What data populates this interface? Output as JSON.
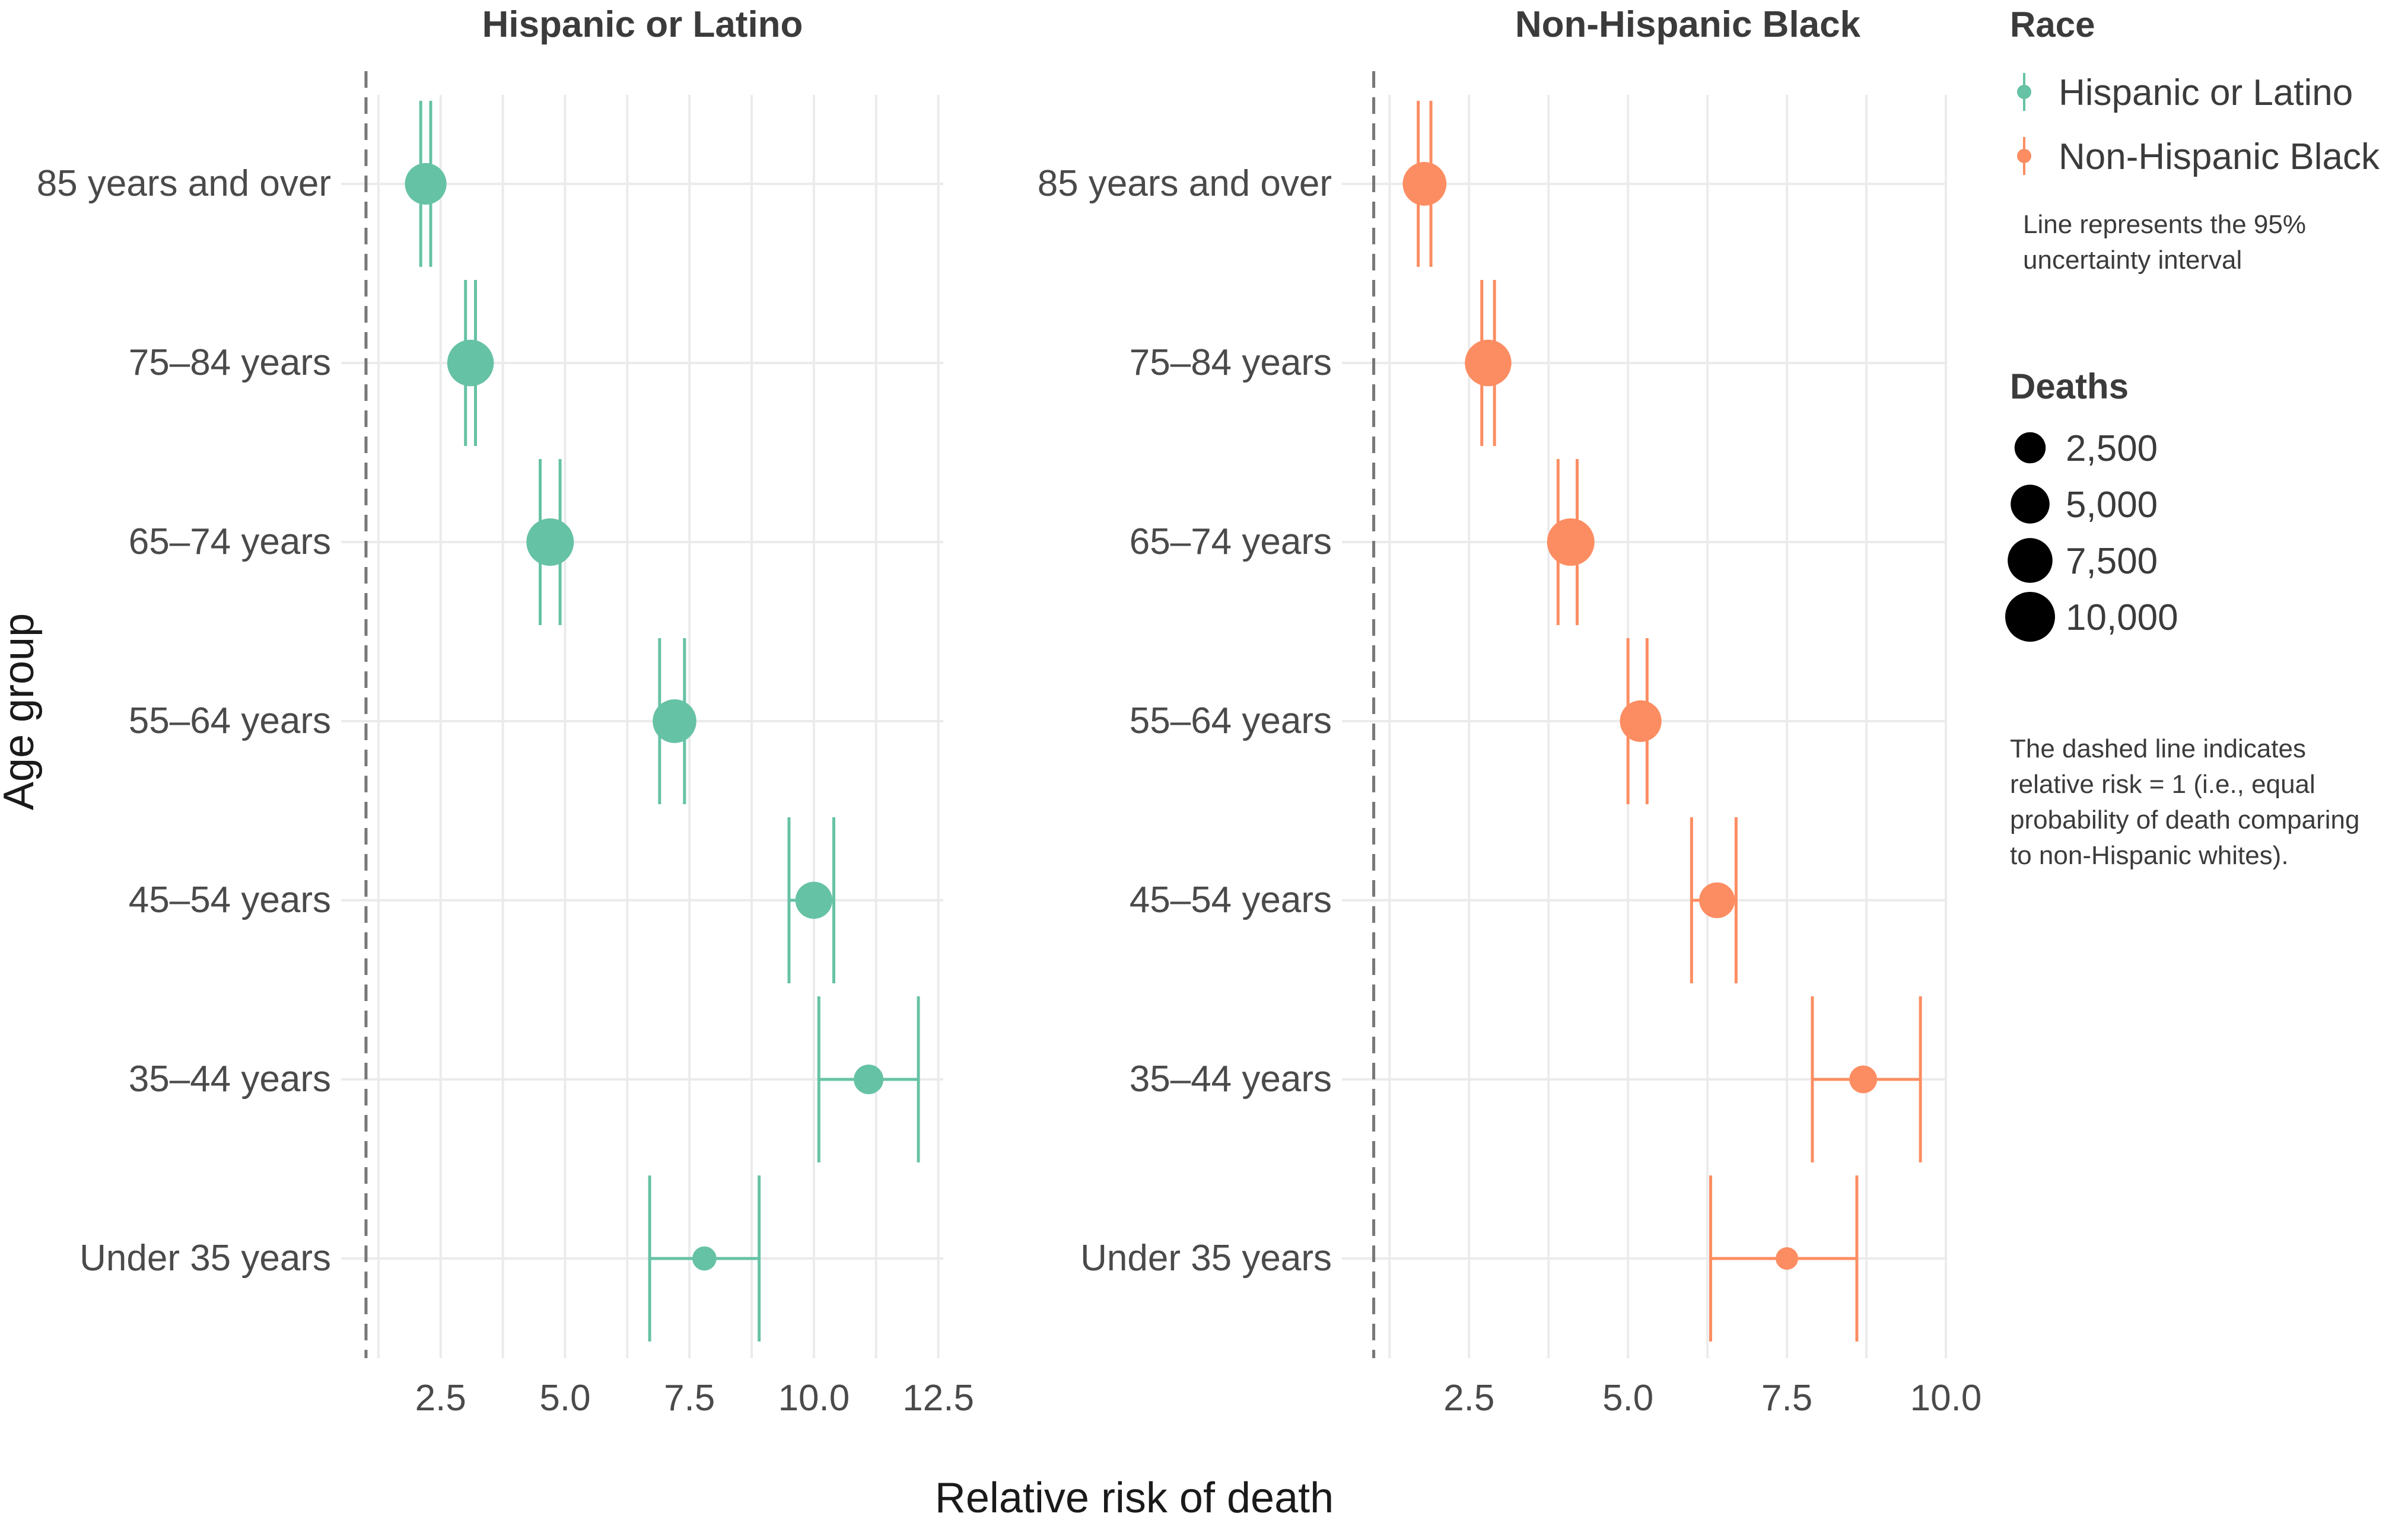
{
  "chart_data": {
    "type": "scatter",
    "xlabel": "Relative risk of death",
    "ylabel": "Age group",
    "categories": [
      "85 years and over",
      "75–84 years",
      "65–74 years",
      "55–64 years",
      "45–54 years",
      "35–44 years",
      "Under 35 years"
    ],
    "reference_line": {
      "x": 1,
      "style": "dashed"
    },
    "grid": true,
    "panels": [
      {
        "title": "Hispanic or Latino",
        "color": "#66C2A5",
        "xlim": [
          0.5,
          12.6
        ],
        "xticks": [
          2.5,
          5.0,
          7.5,
          10.0,
          12.5
        ],
        "xtick_labels": [
          "2.5",
          "5.0",
          "7.5",
          "10.0",
          "12.5"
        ],
        "points": [
          {
            "age": "85 years and over",
            "rr": 2.2,
            "lo": 2.1,
            "hi": 2.3,
            "deaths": 7000
          },
          {
            "age": "75–84 years",
            "rr": 3.1,
            "lo": 3.0,
            "hi": 3.2,
            "deaths": 9500
          },
          {
            "age": "65–74 years",
            "rr": 4.7,
            "lo": 4.5,
            "hi": 4.9,
            "deaths": 10000
          },
          {
            "age": "55–64 years",
            "rr": 7.2,
            "lo": 6.9,
            "hi": 7.4,
            "deaths": 8000
          },
          {
            "age": "45–54 years",
            "rr": 10.0,
            "lo": 9.5,
            "hi": 10.4,
            "deaths": 5000
          },
          {
            "age": "35–44 years",
            "rr": 11.1,
            "lo": 10.1,
            "hi": 12.1,
            "deaths": 2500
          },
          {
            "age": "Under 35 years",
            "rr": 7.8,
            "lo": 6.7,
            "hi": 8.9,
            "deaths": 1200
          }
        ]
      },
      {
        "title": "Non-Hispanic Black",
        "color": "#FC8D62",
        "xlim": [
          0.5,
          10.0
        ],
        "xticks": [
          2.5,
          5.0,
          7.5,
          10.0
        ],
        "xtick_labels": [
          "2.5",
          "5.0",
          "7.5",
          "10.0"
        ],
        "points": [
          {
            "age": "85 years and over",
            "rr": 1.8,
            "lo": 1.7,
            "hi": 1.9,
            "deaths": 8000
          },
          {
            "age": "75–84 years",
            "rr": 2.8,
            "lo": 2.7,
            "hi": 2.9,
            "deaths": 9500
          },
          {
            "age": "65–74 years",
            "rr": 4.1,
            "lo": 3.9,
            "hi": 4.2,
            "deaths": 10000
          },
          {
            "age": "55–64 years",
            "rr": 5.2,
            "lo": 5.0,
            "hi": 5.3,
            "deaths": 7000
          },
          {
            "age": "45–54 years",
            "rr": 6.4,
            "lo": 6.0,
            "hi": 6.7,
            "deaths": 4500
          },
          {
            "age": "35–44 years",
            "rr": 8.7,
            "lo": 7.9,
            "hi": 9.6,
            "deaths": 2000
          },
          {
            "age": "Under 35 years",
            "rr": 7.5,
            "lo": 6.3,
            "hi": 8.6,
            "deaths": 900
          }
        ]
      }
    ],
    "legend": {
      "placement": "right",
      "race_title": "Race",
      "race_items": [
        {
          "label": "Hispanic or Latino",
          "color": "#66C2A5"
        },
        {
          "label": "Non-Hispanic Black",
          "color": "#FC8D62"
        }
      ],
      "race_note": [
        "Line represents the 95%",
        "uncertainty interval"
      ],
      "deaths_title": "Deaths",
      "deaths_items": [
        {
          "label": "2,500",
          "value": 2500
        },
        {
          "label": "5,000",
          "value": 5000
        },
        {
          "label": "7,500",
          "value": 7500
        },
        {
          "label": "10,000",
          "value": 10000
        }
      ],
      "dashed_note": [
        "The dashed line indicates",
        "relative risk = 1 (i.e., equal",
        "probability of death comparing",
        "to non-Hispanic whites)."
      ]
    }
  }
}
